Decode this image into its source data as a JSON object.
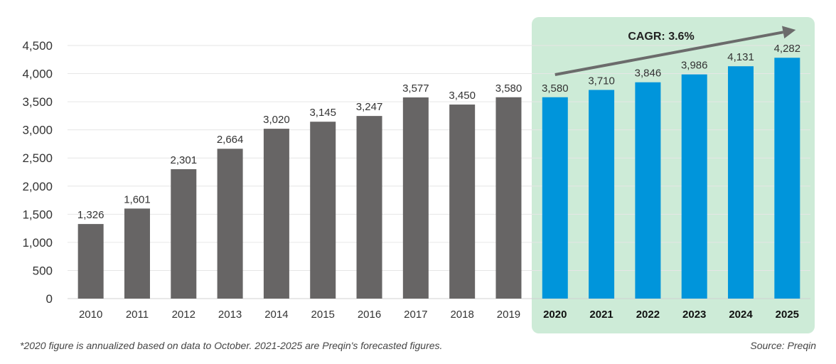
{
  "chart_data": {
    "type": "bar",
    "categories": [
      "2010",
      "2011",
      "2012",
      "2013",
      "2014",
      "2015",
      "2016",
      "2017",
      "2018",
      "2019",
      "2020",
      "2021",
      "2022",
      "2023",
      "2024",
      "2025"
    ],
    "values": [
      1326,
      1601,
      2301,
      2664,
      3020,
      3145,
      3247,
      3577,
      3450,
      3580,
      3580,
      3710,
      3846,
      3986,
      4131,
      4282
    ],
    "value_labels": [
      "1,326",
      "1,601",
      "2,301",
      "2,664",
      "3,020",
      "3,145",
      "3,247",
      "3,577",
      "3,450",
      "3,580",
      "3,580",
      "3,710",
      "3,846",
      "3,986",
      "4,131",
      "4,282"
    ],
    "forecast_categories": [
      "2020",
      "2021",
      "2022",
      "2023",
      "2024",
      "2025"
    ],
    "ylim": [
      0,
      4500
    ],
    "yticks": [
      0,
      500,
      1000,
      1500,
      2000,
      2500,
      3000,
      3500,
      4000,
      4500
    ],
    "ytick_labels": [
      "0",
      "500",
      "1,000",
      "1,500",
      "2,000",
      "2,500",
      "3,000",
      "3,500",
      "4,000",
      "4,500"
    ],
    "grid": true,
    "colors": {
      "historical_bar": "#676565",
      "forecast_bar": "#0095db",
      "forecast_panel": "#cdebd7",
      "arrow": "#6b6b6b",
      "gridline": "#e6e6e6",
      "text": "#333333"
    },
    "annotation": "CAGR: 3.6%"
  },
  "footnote": "*2020 figure is annualized based on data to October. 2021-2025 are Preqin's forecasted figures.",
  "source": "Source: Preqin"
}
